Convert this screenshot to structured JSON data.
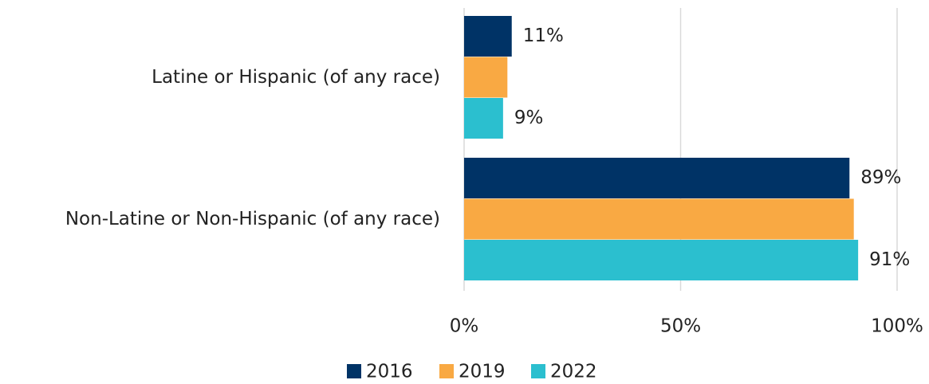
{
  "chart_data": {
    "type": "bar",
    "orientation": "horizontal",
    "categories": [
      "Latine or Hispanic (of any race)",
      "Non-Latine or Non-Hispanic (of any race)"
    ],
    "series": [
      {
        "name": "2016",
        "color": "#003366",
        "values": [
          11,
          89
        ],
        "value_labels": [
          "11%",
          "89%"
        ]
      },
      {
        "name": "2019",
        "color": "#f9a943",
        "values": [
          10,
          90
        ]
      },
      {
        "name": "2022",
        "color": "#2bbfcf",
        "values": [
          9,
          91
        ],
        "value_labels": [
          "9%",
          "91%"
        ]
      }
    ],
    "xlim": [
      0,
      100
    ],
    "xticks": [
      {
        "value": 0,
        "label": "0%"
      },
      {
        "value": 50,
        "label": "50%"
      },
      {
        "value": 100,
        "label": "100%"
      }
    ],
    "grid": true,
    "legend": "bottom"
  }
}
